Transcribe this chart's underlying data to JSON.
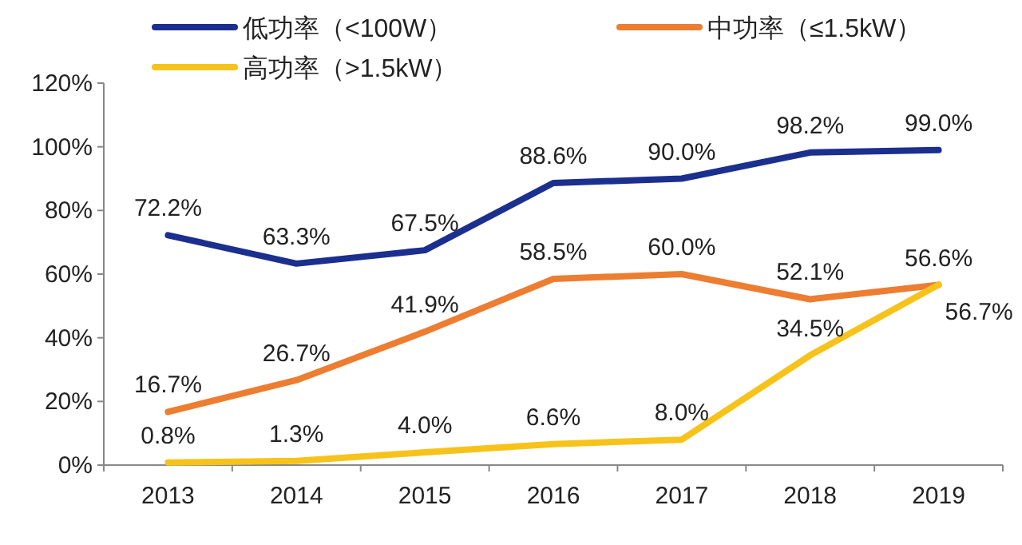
{
  "chart_data": {
    "type": "line",
    "categories": [
      "2013",
      "2014",
      "2015",
      "2016",
      "2017",
      "2018",
      "2019"
    ],
    "series": [
      {
        "name": "低功率（<100W）",
        "color": "#1b2f8f",
        "values": [
          72.2,
          63.3,
          67.5,
          88.6,
          90.0,
          98.2,
          99.0
        ]
      },
      {
        "name": "中功率（≤1.5kW）",
        "color": "#ed7d31",
        "values": [
          16.7,
          26.7,
          41.9,
          58.5,
          60.0,
          52.1,
          56.6
        ]
      },
      {
        "name": "高功率（>1.5kW）",
        "color": "#f7c31a",
        "values": [
          0.8,
          1.3,
          4.0,
          6.6,
          8.0,
          34.5,
          56.7
        ]
      }
    ],
    "ylim": [
      0,
      120
    ],
    "yticks": [
      {
        "value": 0,
        "label": "0%"
      },
      {
        "value": 20,
        "label": "20%"
      },
      {
        "value": 40,
        "label": "40%"
      },
      {
        "value": 60,
        "label": "60%"
      },
      {
        "value": 80,
        "label": "80%"
      },
      {
        "value": 100,
        "label": "100%"
      },
      {
        "value": 120,
        "label": "120%"
      }
    ],
    "value_labels": [
      [
        "72.2%",
        "63.3%",
        "67.5%",
        "88.6%",
        "90.0%",
        "98.2%",
        "99.0%"
      ],
      [
        "16.7%",
        "26.7%",
        "41.9%",
        "58.5%",
        "60.0%",
        "52.1%",
        "56.6%"
      ],
      [
        "0.8%",
        "1.3%",
        "4.0%",
        "6.6%",
        "8.0%",
        "34.5%",
        "56.7%"
      ]
    ],
    "legend": "top",
    "grid": false,
    "marker": "none",
    "line_style": "solid"
  }
}
